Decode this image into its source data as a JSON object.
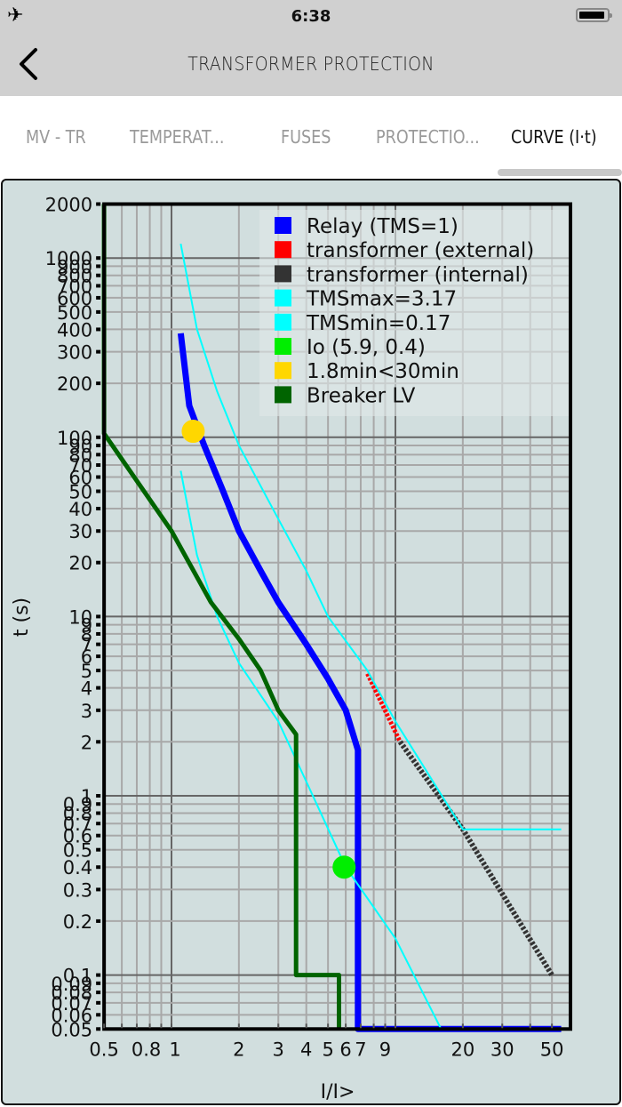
{
  "status_bar": {
    "airplane_icon": "airplane-mode-icon",
    "time": "6:38",
    "battery_icon": "battery-full-icon"
  },
  "nav": {
    "back_icon": "chevron-left-icon",
    "title": "TRANSFORMER PROTECTION"
  },
  "tabs": [
    {
      "label": "MV - TR",
      "active": false
    },
    {
      "label": "TEMPERAT...",
      "active": false
    },
    {
      "label": "FUSES",
      "active": false
    },
    {
      "label": "PROTECTIO...",
      "active": false
    },
    {
      "label": "CURVE (I·t)",
      "active": true
    }
  ],
  "colors": {
    "panel_bg": "#d1dede",
    "relay": "#0000ff",
    "transformer_external": "#ff0000",
    "transformer_internal": "#333333",
    "tms": "#00ffff",
    "io": "#00ee00",
    "limit_point": "#ffd700",
    "breaker_lv": "#006400"
  },
  "chart_data": {
    "type": "line",
    "title": "",
    "xlabel": "I/I>",
    "ylabel": "t (s)",
    "x_scale": "log",
    "y_scale": "log",
    "xlim": [
      0.5,
      55
    ],
    "ylim": [
      0.05,
      2000
    ],
    "grid": true,
    "legend_position": "upper right",
    "x_tick_labels": [
      "0.5",
      "0.8",
      "1",
      "2",
      "3",
      "4",
      "5",
      "6",
      "7",
      "9",
      "20",
      "30",
      "50"
    ],
    "y_tick_labels": [
      "2000",
      "1000",
      "900",
      "800",
      "700",
      "600",
      "500",
      "400",
      "300",
      "200",
      "100",
      "90",
      "80",
      "70",
      "60",
      "50",
      "40",
      "30",
      "20",
      "10",
      "9",
      "8",
      "7",
      "6",
      "5",
      "4",
      "3",
      "2",
      "1",
      "0.9",
      "0.8",
      "0.7",
      "0.6",
      "0.5",
      "0.4",
      "0.3",
      "0.2",
      "0.1",
      "0.09",
      "0.08",
      "0.07",
      "0.06",
      "0.05"
    ],
    "legend": [
      {
        "label": "Relay (TMS=1)",
        "color": "#0000ff"
      },
      {
        "label": "transformer (external)",
        "color": "#ff0000"
      },
      {
        "label": "transformer (internal)",
        "color": "#333333"
      },
      {
        "label": "TMSmax=3.17",
        "color": "#00ffff"
      },
      {
        "label": "TMSmin=0.17",
        "color": "#00ffff"
      },
      {
        "label": "Io (5.9, 0.4)",
        "color": "#00ee00"
      },
      {
        "label": "1.8min<30min",
        "color": "#ffd700"
      },
      {
        "label": "Breaker LV",
        "color": "#006400"
      }
    ],
    "series": [
      {
        "name": "Relay (TMS=1)",
        "color": "#0000ff",
        "width": 7,
        "points": [
          [
            1.1,
            380
          ],
          [
            1.2,
            150
          ],
          [
            1.4,
            90
          ],
          [
            1.7,
            50
          ],
          [
            2.0,
            30
          ],
          [
            2.5,
            18
          ],
          [
            3.0,
            12
          ],
          [
            4.0,
            7
          ],
          [
            5.0,
            4.5
          ],
          [
            6.0,
            3.0
          ],
          [
            6.8,
            1.8
          ],
          [
            6.8,
            0.05
          ],
          [
            55,
            0.05
          ]
        ]
      },
      {
        "name": "transformer (external)",
        "color": "#ff0000",
        "width": 5,
        "dashed": true,
        "points": [
          [
            7.5,
            4.8
          ],
          [
            10.5,
            2.0
          ]
        ]
      },
      {
        "name": "transformer (internal)",
        "color": "#333333",
        "width": 6,
        "dashed": true,
        "points": [
          [
            10.5,
            2.0
          ],
          [
            20,
            0.65
          ],
          [
            50,
            0.1
          ]
        ]
      },
      {
        "name": "TMSmax=3.17",
        "color": "#00ffff",
        "width": 2,
        "points": [
          [
            1.1,
            1200
          ],
          [
            1.3,
            400
          ],
          [
            1.6,
            180
          ],
          [
            2.0,
            90
          ],
          [
            3.0,
            35
          ],
          [
            4.0,
            18
          ],
          [
            5.0,
            10
          ],
          [
            7.5,
            5.0
          ],
          [
            10,
            2.6
          ],
          [
            20,
            0.65
          ],
          [
            55,
            0.65
          ]
        ]
      },
      {
        "name": "TMSmin=0.17",
        "color": "#00ffff",
        "width": 2,
        "points": [
          [
            1.1,
            65
          ],
          [
            1.3,
            22
          ],
          [
            1.6,
            10
          ],
          [
            2.0,
            5.5
          ],
          [
            3.0,
            2.6
          ],
          [
            4.0,
            1.2
          ],
          [
            6.0,
            0.4
          ],
          [
            10,
            0.16
          ],
          [
            16,
            0.05
          ]
        ]
      },
      {
        "name": "Io (5.9, 0.4)",
        "color": "#00ee00",
        "type": "point",
        "x": 5.9,
        "y": 0.4
      },
      {
        "name": "1.8min<30min",
        "color": "#ffd700",
        "type": "point",
        "x": 1.25,
        "y": 108
      },
      {
        "name": "Breaker LV",
        "color": "#006400",
        "width": 5,
        "points": [
          [
            0.5,
            2000
          ],
          [
            0.5,
            105
          ],
          [
            1.0,
            30
          ],
          [
            1.5,
            12
          ],
          [
            2.0,
            7.5
          ],
          [
            2.5,
            5.0
          ],
          [
            3.0,
            3.0
          ],
          [
            3.6,
            2.2
          ],
          [
            3.6,
            0.1
          ],
          [
            5.6,
            0.1
          ],
          [
            5.6,
            0.05
          ]
        ]
      }
    ]
  }
}
